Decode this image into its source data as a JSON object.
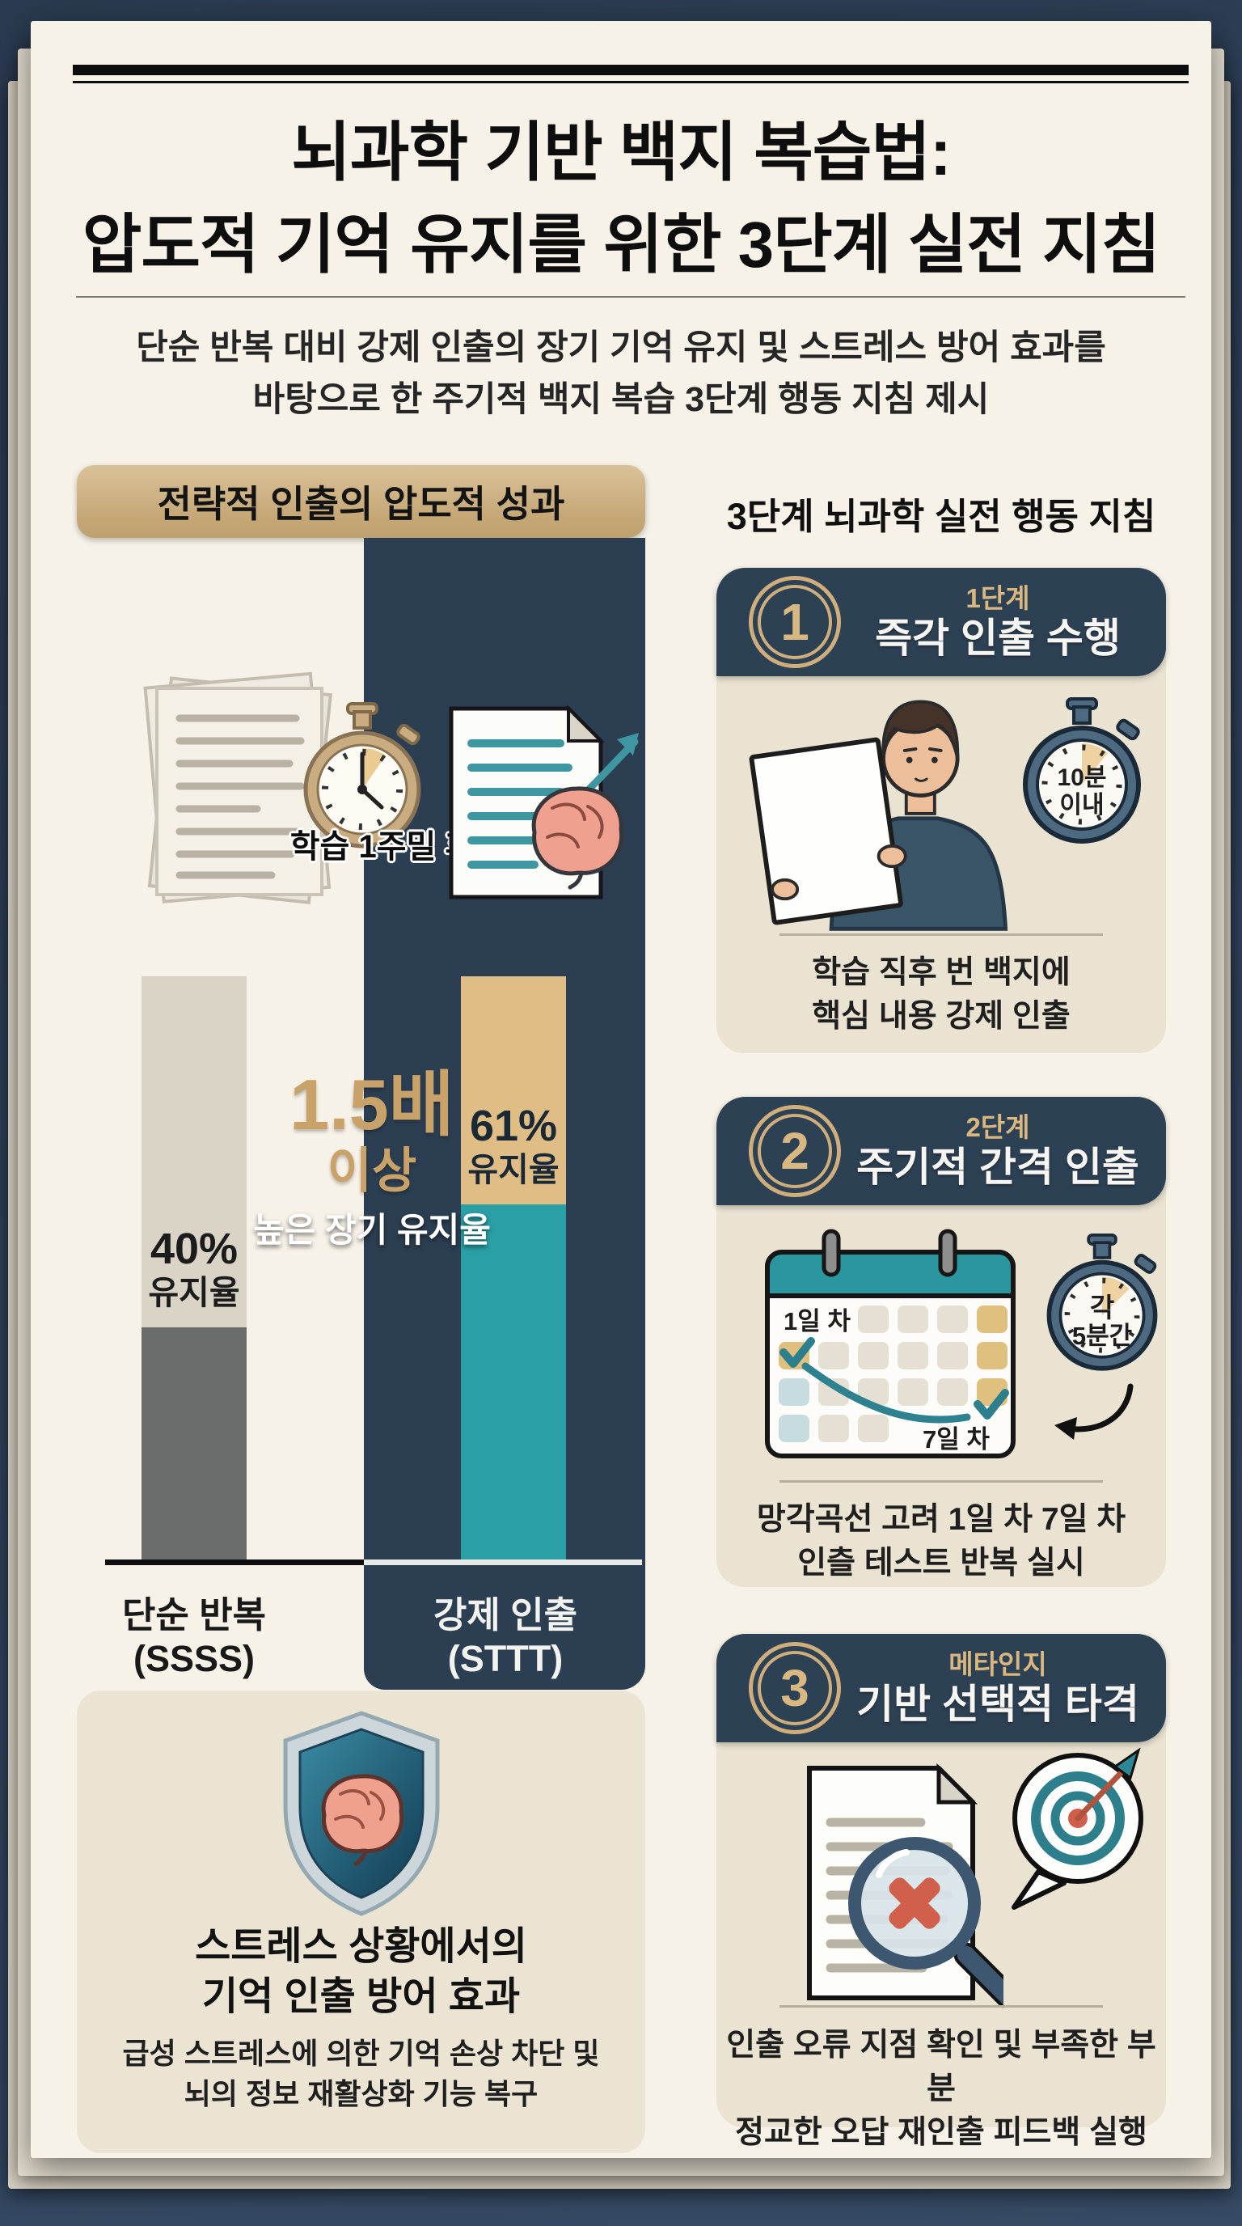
{
  "header": {
    "title_line1": "뇌과학 기반 백지 복습법:",
    "title_line2": "압도적 기억 유지를 위한 3단계 실전 지침",
    "subtitle_line1": "단순 반복 대비 강제 인출의 장기 기억 유지 및 스트레스 방어 효과를",
    "subtitle_line2": "바탕으로 한 주기적 백지 복습 3단계 행동 지침 제시"
  },
  "chart_section": {
    "header": "전략적 인출의 압도적 성과",
    "timer_label": "학습 1주밀 후",
    "highlight": {
      "factor": "1.5배",
      "suffix": "이상",
      "caption": "높은 장기 유지율"
    },
    "bars": [
      {
        "value_label": "40%",
        "unit_label": "유지율",
        "category_line1": "단순 반복",
        "category_line2": "(SSSS)"
      },
      {
        "value_label": "61%",
        "unit_label": "유지율",
        "category_line1": "강제 인출",
        "category_line2": "(STTT)"
      }
    ]
  },
  "chart_data": {
    "type": "bar",
    "title": "전략적 인출의 압도적 성과",
    "categories": [
      "단순 반복 (SSSS)",
      "강제 인출 (STTT)"
    ],
    "values": [
      40,
      61
    ],
    "unit": "%",
    "value_labels": [
      "40% 유지율",
      "61% 유지율"
    ],
    "annotation": "1.5배 이상 높은 장기 유지율",
    "context_label": "학습 1주밀 후",
    "ylim": [
      0,
      100
    ],
    "legend": "none",
    "grid": false
  },
  "steps_section": {
    "header": "3단계 뇌과학 실전 행동 지침",
    "steps": [
      {
        "number": "1",
        "tag": "1단계",
        "title": "즉각 인출 수행",
        "caption_line1": "학습 직후 번 백지에",
        "caption_line2": "핵심 내용 강제 인출",
        "badge_line1": "10분",
        "badge_line2": "이내"
      },
      {
        "number": "2",
        "tag": "2단계",
        "title": "주기적 간격 인출",
        "caption_line1": "망각곡선 고려 1일 차 7일 차",
        "caption_line2": "인츨 테스트 반복 실시",
        "badge_line1": "각",
        "badge_line2": "5분간",
        "calendar_day1": "1일 차",
        "calendar_day7": "7일 차"
      },
      {
        "number": "3",
        "tag": "메타인지",
        "title": "기반 선택적 타격",
        "caption_line1": "인출 오류 지점 확인 및 부족한 부분",
        "caption_line2": "정교한 오답 재인출 피드백 실행"
      }
    ]
  },
  "stress_card": {
    "heading_line1": "스트레스 상황에서의",
    "heading_line2": "기억 인출 방어 효과",
    "body_line1": "급성 스트레스에 의한 기억 손상 차단 및",
    "body_line2": "뇌의 정보 재활상화 기능 복구"
  },
  "colors": {
    "accent_gold": "#c9a269",
    "navy": "#2d4154",
    "teal_bar": "#2aa0a6",
    "gold_bar": "#dfbd84",
    "gray_bar": "#696d6b",
    "page_cream": "#f7f2e8",
    "error_red": "#d0604c"
  }
}
